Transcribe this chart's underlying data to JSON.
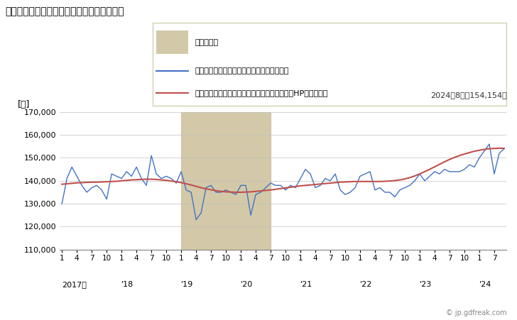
{
  "title": "パートタイム労働者のきまって支給する給与",
  "ylabel": "[円]",
  "annotation": "2024年8月：154,154円",
  "legend_recession": "景気後退期",
  "legend_line1": "パートタイム労働者のきまって支給する給与",
  "legend_line2": "パートタイム労働者のきまって支給する給与（HPフィルタ）",
  "watermark": "© jp.gdfreak.com",
  "recession_start": 24,
  "recession_end": 42,
  "ylim": [
    110000,
    170000
  ],
  "yticks": [
    110000,
    120000,
    130000,
    140000,
    150000,
    160000,
    170000
  ],
  "line_color": "#4472C4",
  "hp_color": "#C0504D",
  "recession_color": "#D3C9A8",
  "legend_border_color": "#C8C8A0",
  "background_color": "#FFFFFF",
  "plot_bg_color": "#FFFFFF",
  "raw_values": [
    130000,
    141000,
    146000,
    142000,
    138000,
    135000,
    137000,
    138000,
    136000,
    132000,
    143000,
    142000,
    141000,
    144000,
    142000,
    146000,
    141000,
    138000,
    151000,
    143000,
    141000,
    142000,
    141000,
    139000,
    144000,
    136000,
    135000,
    123000,
    126000,
    137000,
    138000,
    135000,
    135000,
    136000,
    135000,
    134000,
    138000,
    138000,
    125000,
    134000,
    135000,
    137000,
    139000,
    138000,
    138000,
    136000,
    138000,
    137000,
    141000,
    145000,
    143000,
    137000,
    138000,
    141000,
    140000,
    143000,
    136000,
    134000,
    135000,
    137000,
    142000,
    143000,
    144000,
    136000,
    137000,
    135000,
    135000,
    133000,
    136000,
    137000,
    138000,
    140000,
    143000,
    140000,
    142000,
    144000,
    143000,
    145000,
    144000,
    144000,
    144000,
    145000,
    147000,
    146000,
    150000,
    153000,
    156000,
    143000,
    152000,
    154000
  ],
  "hp_values": [
    138500,
    138700,
    138900,
    139100,
    139200,
    139300,
    139400,
    139400,
    139500,
    139600,
    139700,
    139800,
    140000,
    140200,
    140400,
    140500,
    140600,
    140700,
    140700,
    140600,
    140400,
    140200,
    139900,
    139600,
    139200,
    138700,
    138200,
    137600,
    137000,
    136500,
    136100,
    135700,
    135400,
    135200,
    135100,
    135000,
    135000,
    135100,
    135200,
    135400,
    135600,
    135800,
    136000,
    136300,
    136600,
    136900,
    137200,
    137500,
    137800,
    138000,
    138200,
    138400,
    138600,
    138800,
    139000,
    139200,
    139400,
    139500,
    139600,
    139700,
    139700,
    139700,
    139700,
    139700,
    139700,
    139800,
    139900,
    140100,
    140400,
    140800,
    141400,
    142100,
    143000,
    144000,
    145000,
    146100,
    147200,
    148300,
    149300,
    150200,
    151000,
    151700,
    152300,
    152900,
    153300,
    153700,
    154000,
    154100,
    154200,
    154154
  ],
  "xtick_positions": [
    0,
    3,
    6,
    9,
    12,
    15,
    18,
    21,
    24,
    27,
    30,
    33,
    36,
    39,
    42,
    45,
    48,
    51,
    54,
    57,
    60,
    63,
    66,
    69,
    72,
    75,
    78,
    81,
    84,
    87
  ],
  "xtick_labels": [
    "1",
    "4",
    "7",
    "10",
    "1",
    "4",
    "7",
    "10",
    "1",
    "4",
    "7",
    "10",
    "1",
    "4",
    "7",
    "10",
    "1",
    "4",
    "7",
    "10",
    "1",
    "4",
    "7",
    "10",
    "1",
    "4",
    "7",
    "10",
    "1",
    "7"
  ],
  "year_positions": [
    0,
    12,
    24,
    36,
    48,
    60,
    72,
    84
  ],
  "year_labels": [
    "2017年",
    "'18",
    "'19",
    "'20",
    "'21",
    "'22",
    "'23",
    "'24"
  ]
}
